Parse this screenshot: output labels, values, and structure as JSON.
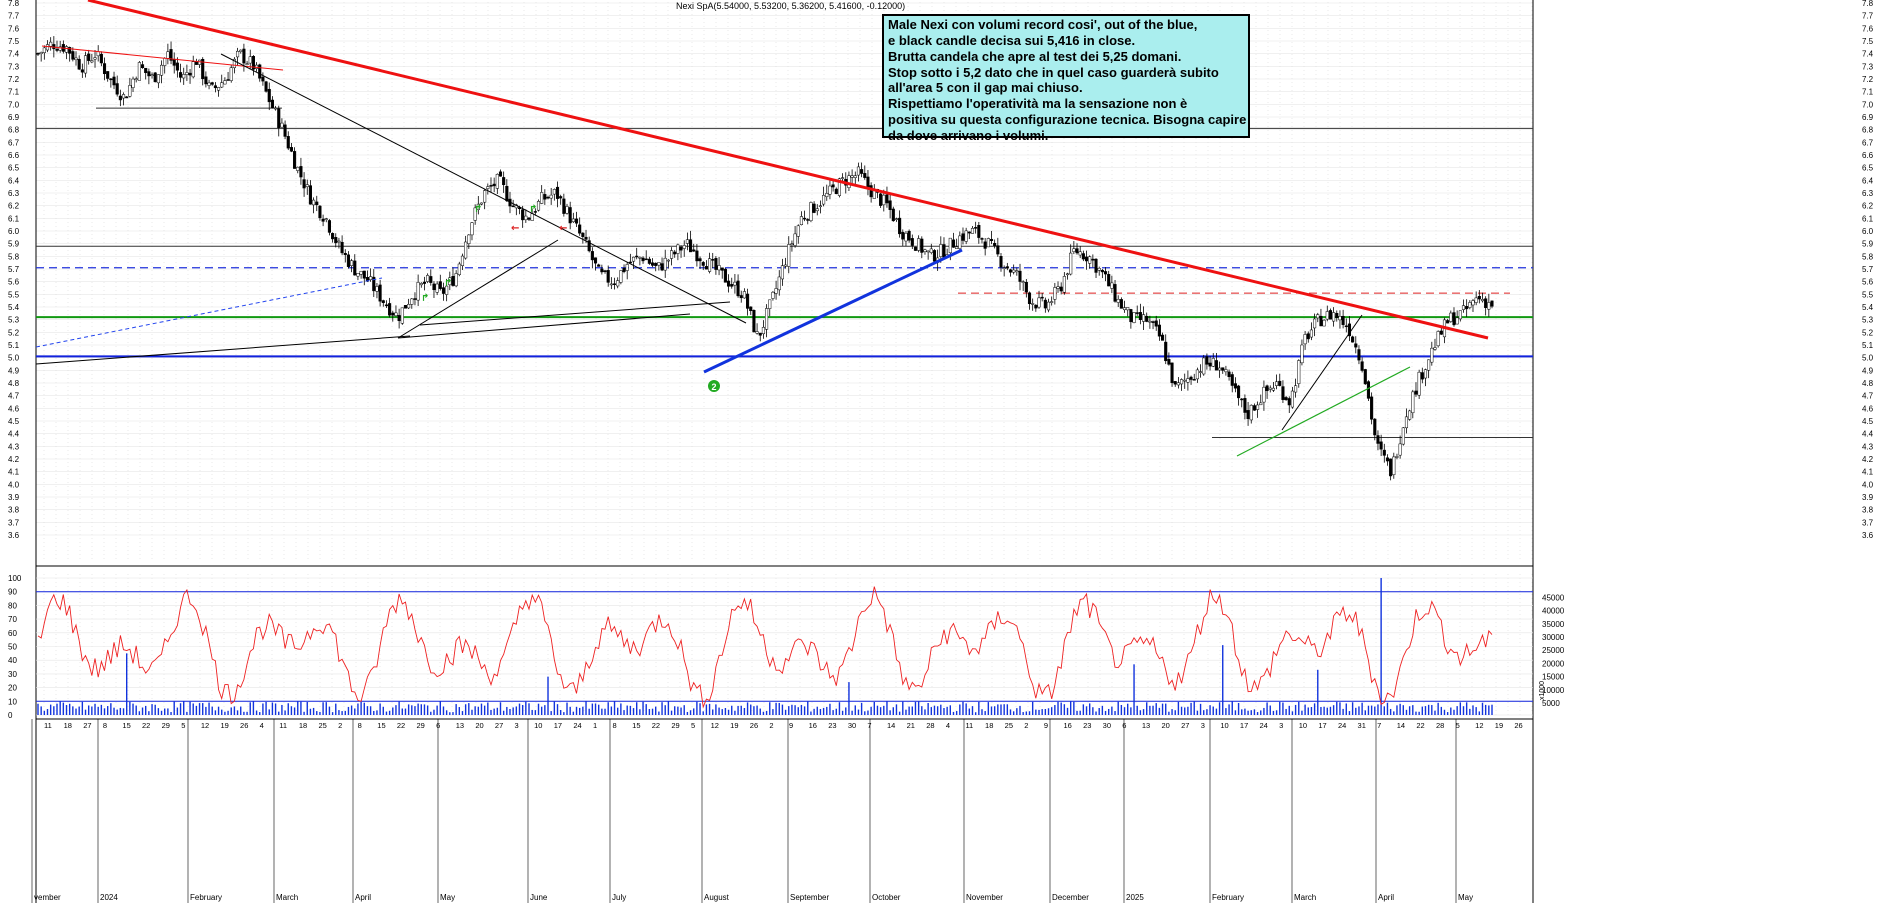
{
  "header": "Nexi SpA(5.54000, 5.53200, 5.36200, 5.41600, -0.12000)",
  "annotation": [
    "Male Nexi con volumi record cosi', out of the blue,",
    "e black candle decisa sui 5,416 in close.",
    "Brutta candela che apre al test dei 5,25 domani.",
    "Stop sotto i 5,2 dato che in quel caso guarderà subito",
    "all'area 5 con il gap mai chiuso.",
    "Rispettiamo l'operatività ma la sensazione non è",
    "positiva su questa configurazione tecnica. Bisogna capire",
    "da dove arrivano i volumi."
  ],
  "marker_label": "2",
  "volume_scale_label": "x1000",
  "chart_data": [
    {
      "type": "candlestick",
      "name": "price",
      "ylim": [
        3.5,
        7.9
      ],
      "yticks": [
        3.6,
        3.7,
        3.8,
        3.9,
        4.0,
        4.1,
        4.2,
        4.3,
        4.4,
        4.5,
        4.6,
        4.7,
        4.8,
        4.9,
        5.0,
        5.1,
        5.2,
        5.3,
        5.4,
        5.5,
        5.6,
        5.7,
        5.8,
        5.9,
        6.0,
        6.1,
        6.2,
        6.3,
        6.4,
        6.5,
        6.6,
        6.7,
        6.8,
        6.9,
        7.0,
        7.1,
        7.2,
        7.3,
        7.4,
        7.5,
        7.6,
        7.7,
        7.8
      ],
      "grid": true,
      "close_path": [
        7.4,
        7.48,
        7.45,
        7.3,
        7.4,
        7.2,
        7.05,
        7.3,
        7.2,
        7.4,
        7.2,
        7.35,
        7.1,
        7.2,
        7.4,
        7.3,
        7.05,
        6.8,
        6.5,
        6.25,
        6.1,
        5.85,
        5.7,
        5.6,
        5.45,
        5.32,
        5.5,
        5.6,
        5.5,
        5.65,
        6.05,
        6.3,
        6.4,
        6.2,
        6.1,
        6.25,
        6.3,
        6.1,
        5.9,
        5.65,
        5.6,
        5.75,
        5.8,
        5.7,
        5.8,
        5.9,
        5.8,
        5.7,
        5.6,
        5.5,
        5.15,
        5.45,
        5.8,
        6.1,
        6.2,
        6.3,
        6.4,
        6.45,
        6.3,
        6.2,
        6.0,
        5.9,
        5.8,
        5.85,
        5.95,
        6.0,
        5.9,
        5.75,
        5.65,
        5.45,
        5.4,
        5.55,
        5.85,
        5.8,
        5.65,
        5.45,
        5.3,
        5.3,
        5.15,
        4.75,
        4.85,
        4.95,
        4.95,
        4.75,
        4.55,
        4.7,
        4.8,
        4.65,
        5.15,
        5.3,
        5.35,
        5.25,
        4.95,
        4.3,
        4.1,
        4.55,
        4.85,
        5.1,
        5.3,
        5.35,
        5.48,
        5.42
      ],
      "horizontal_levels": [
        6.81,
        5.88,
        5.71,
        5.51,
        5.32,
        5.01,
        4.37,
        6.97
      ],
      "trendlines": [
        {
          "from": [
            "2023-11",
            7.9
          ],
          "to": [
            "2025-05",
            5.27
          ],
          "color": "#ee1111"
        },
        {
          "from": [
            "2024-08",
            5.02
          ],
          "to": [
            "2024-10",
            5.97
          ],
          "color": "#1133dd"
        },
        {
          "from": [
            "2025-02",
            4.37
          ],
          "to": [
            "2025-04",
            5.07
          ],
          "color": "#22aa22"
        }
      ]
    },
    {
      "type": "line+bar",
      "name": "oscillator and volume",
      "ylim_left": [
        0,
        100
      ],
      "yticks_left": [
        0,
        10,
        20,
        30,
        40,
        50,
        60,
        70,
        80,
        90,
        100
      ],
      "yticks_right": [
        "5000",
        "10000",
        "15000",
        "20000",
        "25000",
        "30000",
        "35000",
        "40000",
        "45000"
      ],
      "bands": [
        10,
        90
      ],
      "volume_highlights": [
        {
          "index": 28,
          "value": 45
        },
        {
          "index": 161,
          "value": 28
        },
        {
          "index": 256,
          "value": 24
        },
        {
          "index": 346,
          "value": 37
        },
        {
          "index": 374,
          "value": 51
        },
        {
          "index": 404,
          "value": 33
        },
        {
          "index": 424,
          "value": 100
        }
      ]
    }
  ],
  "x_axis": {
    "month_labels": [
      "vember",
      "2024",
      "February",
      "March",
      "April",
      "May",
      "June",
      "July",
      "August",
      "September",
      "October",
      "November",
      "December",
      "2025",
      "February",
      "March",
      "April",
      "May"
    ],
    "day_labels": [
      "11",
      "18",
      "27",
      "8",
      "15",
      "22",
      "29",
      "5",
      "12",
      "19",
      "26",
      "4",
      "11",
      "18",
      "25",
      "2",
      "8",
      "15",
      "22",
      "29",
      "6",
      "13",
      "20",
      "27",
      "3",
      "10",
      "17",
      "24",
      "1",
      "8",
      "15",
      "22",
      "29",
      "5",
      "12",
      "19",
      "26",
      "2",
      "9",
      "16",
      "23",
      "30",
      "7",
      "14",
      "21",
      "28",
      "4",
      "11",
      "18",
      "25",
      "2",
      "9",
      "16",
      "23",
      "30",
      "6",
      "13",
      "20",
      "27",
      "3",
      "10",
      "17",
      "24",
      "3",
      "10",
      "17",
      "24",
      "31",
      "7",
      "14",
      "22",
      "28",
      "5",
      "12",
      "19",
      "26"
    ]
  }
}
